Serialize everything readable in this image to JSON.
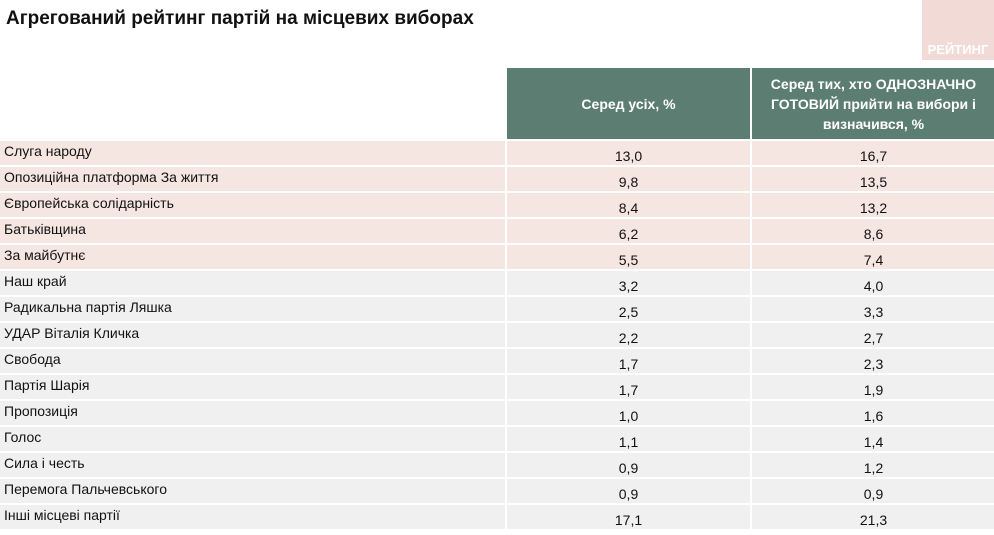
{
  "header": {
    "title": "Агрегований рейтинг партій на місцевих виборах",
    "logo": "РЕЙТИНГ"
  },
  "table": {
    "columns": [
      "Серед усіх, %",
      "Серед тих, хто ОДНОЗНАЧНО ГОТОВИЙ прийти на вибори і визначився, %"
    ],
    "rows": [
      [
        "Слуга народу",
        "13,0",
        "16,7"
      ],
      [
        "Опозиційна платформа За життя",
        "9,8",
        "13,5"
      ],
      [
        "Європейська солідарність",
        "8,4",
        "13,2"
      ],
      [
        "Батьківщина",
        "6,2",
        "8,6"
      ],
      [
        "За майбутнє",
        "5,5",
        "7,4"
      ],
      [
        "Наш край",
        "3,2",
        "4,0"
      ],
      [
        "Радикальна партія Ляшка",
        "2,5",
        "3,3"
      ],
      [
        "УДАР Віталія Кличка",
        "2,2",
        "2,7"
      ],
      [
        "Свобода",
        "1,7",
        "2,3"
      ],
      [
        "Партія Шарія",
        "1,7",
        "1,9"
      ],
      [
        "Пропозиція",
        "1,0",
        "1,6"
      ],
      [
        "Голос",
        "1,1",
        "1,4"
      ],
      [
        "Сила і честь",
        "0,9",
        "1,2"
      ],
      [
        "Перемога Пальчевського",
        "0,9",
        "0,9"
      ],
      [
        "Інші місцеві партії",
        "17,1",
        "21,3"
      ]
    ]
  }
}
